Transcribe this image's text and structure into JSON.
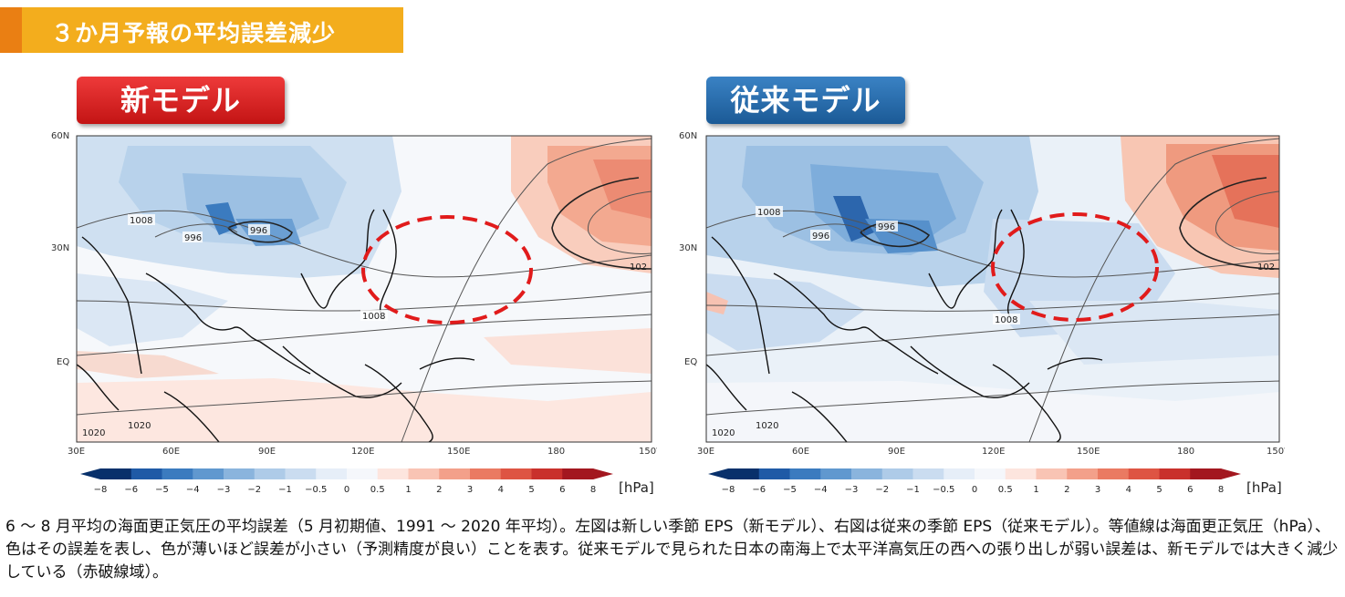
{
  "header": {
    "title": "３か月予報の平均誤差減少"
  },
  "panels": [
    {
      "badge": "新モデル",
      "badge_color": "#d82020"
    },
    {
      "badge": "従来モデル",
      "badge_color": "#2a6fb0"
    }
  ],
  "caption": "6 ～ 8 月平均の海面更正気圧の平均誤差（5 月初期値、1991 ～ 2020 年平均）。左図は新しい季節 EPS（新モデル）、右図は従来の季節 EPS（従来モデル）。等値線は海面更正気圧（hPa）、色はその誤差を表し、色が薄いほど誤差が小さい（予測精度が良い）ことを表す。従来モデルで見られた日本の南海上で太平洋高気圧の西への張り出しが弱い誤差は、新モデルでは大きく減少している（赤破線域）。",
  "chart_data": [
    {
      "type": "heatmap",
      "title": "新モデル",
      "x_ticks": [
        "30E",
        "60E",
        "90E",
        "120E",
        "150E",
        "180",
        "150W"
      ],
      "y_ticks": [
        "60N",
        "30N",
        "EQ"
      ],
      "contour_labels": [
        "1008",
        "996",
        "996",
        "1008",
        "1020",
        "1020",
        "102"
      ],
      "colorbar": {
        "unit": "[hPa]",
        "ticks": [
          "−8",
          "−6",
          "−5",
          "−4",
          "−3",
          "−2",
          "−1",
          "−0.5",
          "0",
          "0.5",
          "1",
          "2",
          "3",
          "4",
          "5",
          "6",
          "8"
        ],
        "colors": [
          "#08306b",
          "#1f5aa6",
          "#3b7bbf",
          "#6098cf",
          "#8ab4dd",
          "#aecbe8",
          "#cadcf0",
          "#e6eef8",
          "#f5f7fb",
          "#fde5de",
          "#f9c4b4",
          "#f3a08a",
          "#ea7a62",
          "#de5443",
          "#c9302c",
          "#a3171f"
        ]
      }
    },
    {
      "type": "heatmap",
      "title": "従来モデル",
      "x_ticks": [
        "30E",
        "60E",
        "90E",
        "120E",
        "150E",
        "180",
        "150W"
      ],
      "y_ticks": [
        "60N",
        "30N",
        "EQ"
      ],
      "contour_labels": [
        "1008",
        "996",
        "996",
        "1008",
        "1020",
        "1020",
        "102"
      ],
      "colorbar": {
        "unit": "[hPa]",
        "ticks": [
          "−8",
          "−6",
          "−5",
          "−4",
          "−3",
          "−2",
          "−1",
          "−0.5",
          "0",
          "0.5",
          "1",
          "2",
          "3",
          "4",
          "5",
          "6",
          "8"
        ],
        "colors": [
          "#08306b",
          "#1f5aa6",
          "#3b7bbf",
          "#6098cf",
          "#8ab4dd",
          "#aecbe8",
          "#cadcf0",
          "#e6eef8",
          "#f5f7fb",
          "#fde5de",
          "#f9c4b4",
          "#f3a08a",
          "#ea7a62",
          "#de5443",
          "#c9302c",
          "#a3171f"
        ]
      }
    }
  ]
}
